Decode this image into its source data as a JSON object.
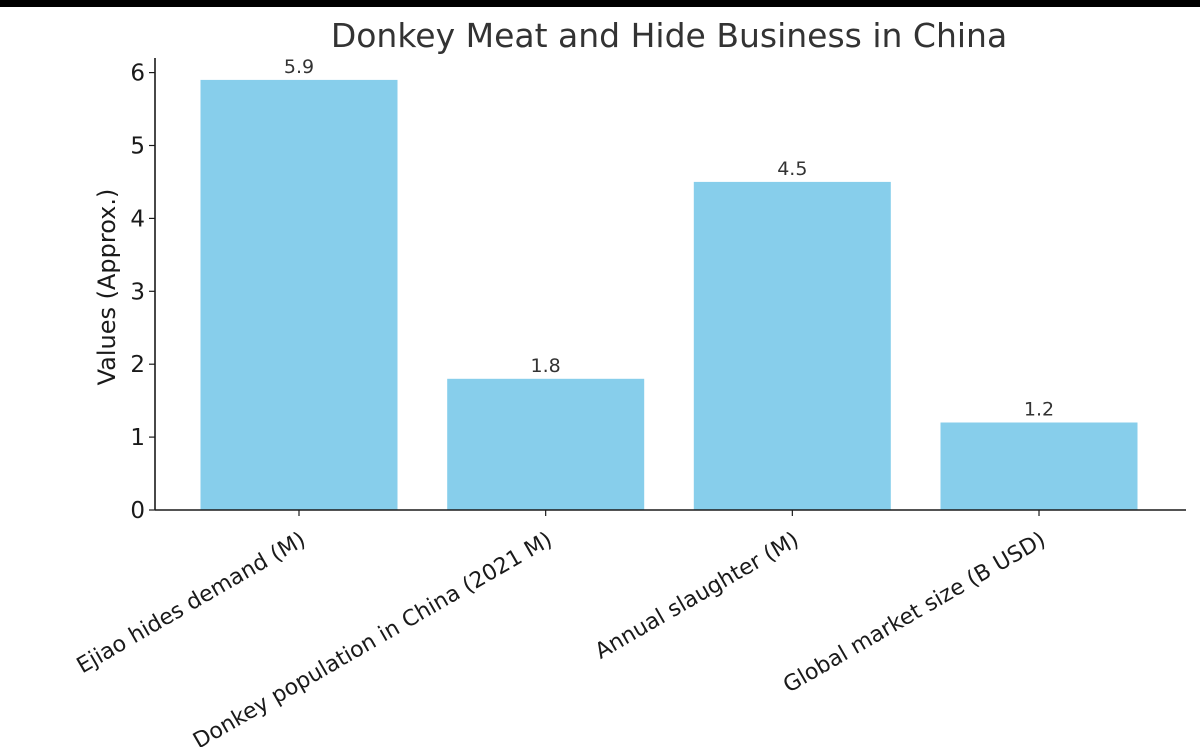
{
  "chart_data": {
    "type": "bar",
    "title": "Donkey Meat and Hide Business in China",
    "xlabel": "",
    "ylabel": "Values (Approx.)",
    "categories": [
      "Ejiao hides demand (M)",
      "Donkey population in China (2021 M)",
      "Annual slaughter (M)",
      "Global market size (B USD)"
    ],
    "values": [
      5.9,
      1.8,
      4.5,
      1.2
    ],
    "data_labels": [
      "5.9",
      "1.8",
      "4.5",
      "1.2"
    ],
    "yticks": [
      0,
      1,
      2,
      3,
      4,
      5,
      6
    ],
    "ylim": [
      0,
      6.2
    ],
    "bar_color": "#87CEEB",
    "axis_color": "#1a1a1a",
    "grid": false,
    "legend": "none"
  }
}
